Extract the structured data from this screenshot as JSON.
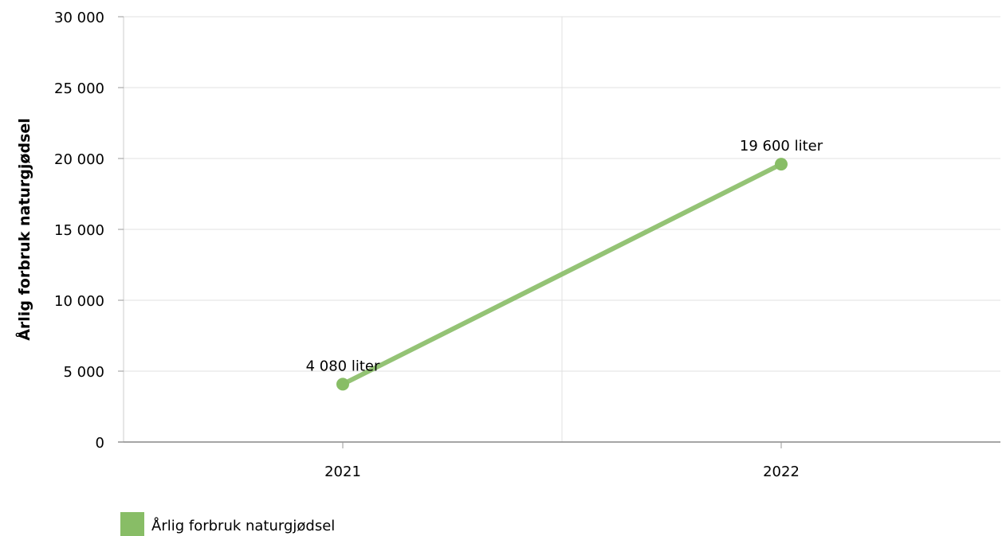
{
  "chart_data": {
    "type": "line",
    "categories": [
      "2021",
      "2022"
    ],
    "series": [
      {
        "name": "Årlig forbruk naturgjødsel",
        "values": [
          4080,
          19600
        ],
        "data_labels": [
          "4 080 liter",
          "19 600 liter"
        ],
        "color": "#88bd66"
      }
    ],
    "ylabel": "Årlig forbruk naturgjødsel",
    "xlabel": "",
    "ylim": [
      0,
      30000
    ],
    "y_ticks": [
      0,
      5000,
      10000,
      15000,
      20000,
      25000,
      30000
    ],
    "y_tick_labels": [
      "0",
      "5 000",
      "10 000",
      "15 000",
      "20 000",
      "25 000",
      "30 000"
    ],
    "grid": true,
    "legend_position": "bottom-left"
  }
}
